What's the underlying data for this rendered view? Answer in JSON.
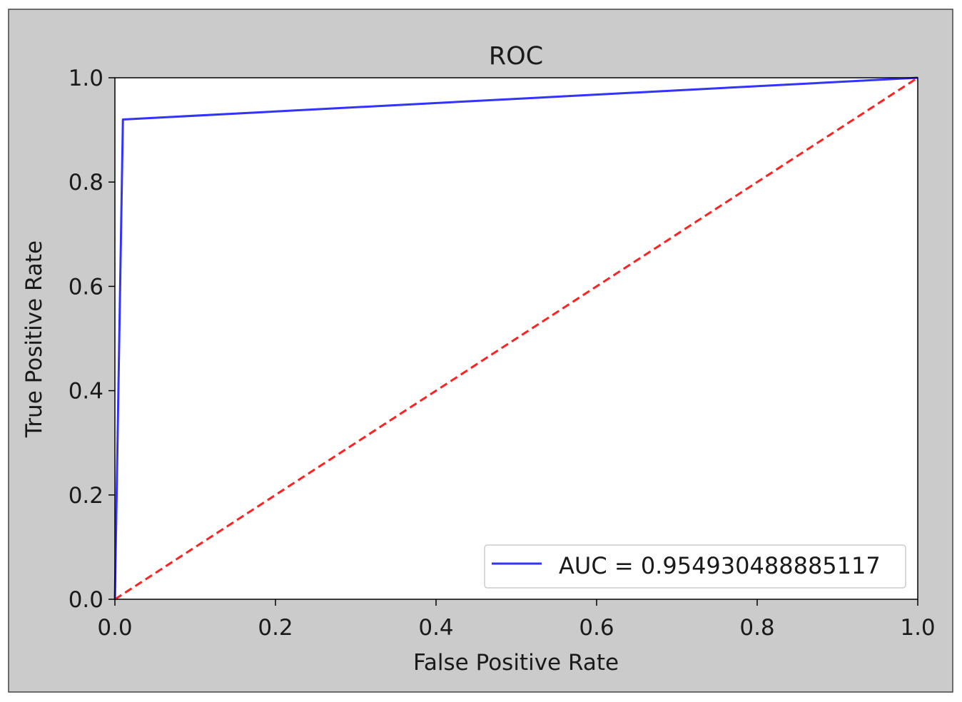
{
  "chart_data": {
    "type": "line",
    "title": "ROC",
    "xlabel": "False Positive Rate",
    "ylabel": "True Positive Rate",
    "xlim": [
      0.0,
      1.0
    ],
    "ylim": [
      0.0,
      1.0
    ],
    "xticks": [
      0.0,
      0.2,
      0.4,
      0.6,
      0.8,
      1.0
    ],
    "yticks": [
      0.0,
      0.2,
      0.4,
      0.6,
      0.8,
      1.0
    ],
    "xtick_labels": [
      "0.0",
      "0.2",
      "0.4",
      "0.6",
      "0.8",
      "1.0"
    ],
    "ytick_labels": [
      "0.0",
      "0.2",
      "0.4",
      "0.6",
      "0.8",
      "1.0"
    ],
    "grid": false,
    "legend_position": "lower-right",
    "series": [
      {
        "name": "AUC = 0.954930488885117",
        "color": "#3333ff",
        "style": "solid",
        "x": [
          0.0,
          0.01,
          1.0
        ],
        "y": [
          0.0,
          0.92,
          1.0
        ]
      },
      {
        "color": "#ff2222",
        "style": "dashed",
        "x": [
          0.0,
          1.0
        ],
        "y": [
          0.0,
          1.0
        ]
      }
    ]
  },
  "colors": {
    "figure_background": "#cbcbcb",
    "plot_background": "#ffffff"
  }
}
